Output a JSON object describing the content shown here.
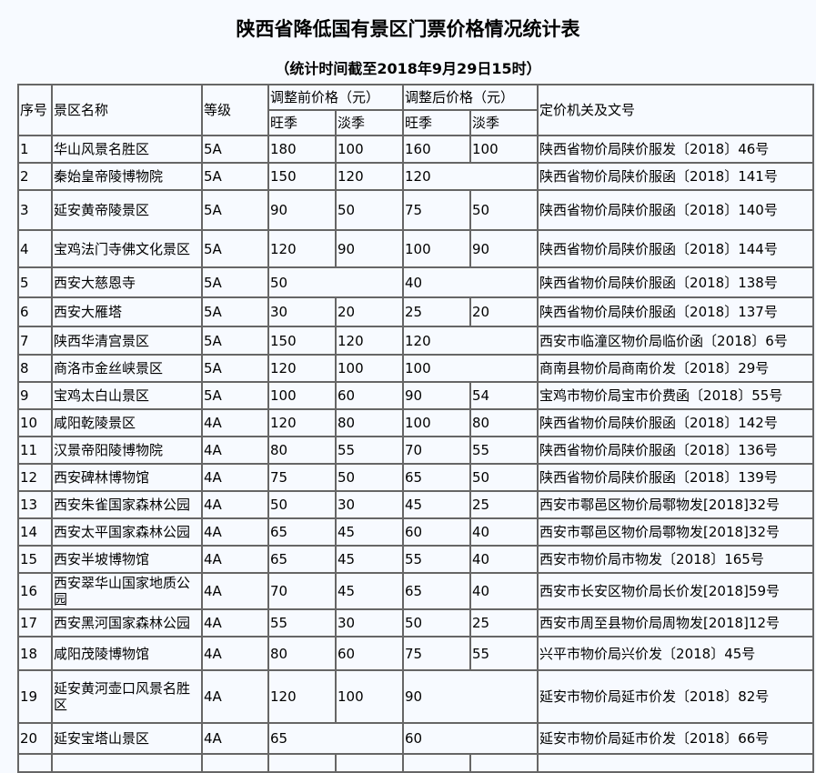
{
  "title": "陕西省降低国有景区门票价格情况统计表",
  "subtitle": "（统计时间截至2018年9月29日15时）",
  "headers": {
    "no": "序号",
    "name": "景区名称",
    "grade": "等级",
    "before": "调整前价格（元）",
    "after": "调整后价格（元）",
    "peak": "旺季",
    "off": "淡季",
    "doc": "定价机关及文号"
  },
  "rows": [
    {
      "no": "1",
      "name": "华山风景名胜区",
      "grade": "5A",
      "bp": "180",
      "bo": "100",
      "ap": "160",
      "ao": "100",
      "doc": "陕西省物价局陕价服发〔2018〕46号"
    },
    {
      "no": "2",
      "name": "秦始皇帝陵博物院",
      "grade": "5A",
      "bp": "150",
      "bo": "120",
      "ap": "120",
      "doc": "陕西省物价局陕价服函〔2018〕141号"
    },
    {
      "no": "3",
      "name": "延安黄帝陵景区",
      "grade": "5A",
      "bp": "90",
      "bo": "50",
      "ap": "75",
      "ao": "50",
      "doc": "陕西省物价局陕价服函〔2018〕140号"
    },
    {
      "no": "4",
      "name": "宝鸡法门寺佛文化景区",
      "grade": "5A",
      "bp": "120",
      "bo": "90",
      "ap": "100",
      "ao": "90",
      "doc": "陕西省物价局陕价服函〔2018〕144号"
    },
    {
      "no": "5",
      "name": "西安大慈恩寺",
      "grade": "5A",
      "bp": "50",
      "ap": "40",
      "doc": "陕西省物价局陕价服函〔2018〕138号"
    },
    {
      "no": "6",
      "name": "西安大雁塔",
      "grade": "5A",
      "bp": "30",
      "bo": "20",
      "ap": "25",
      "ao": "20",
      "doc": "陕西省物价局陕价服函〔2018〕137号"
    },
    {
      "no": "7",
      "name": "陕西华清宫景区",
      "grade": "5A",
      "bp": "150",
      "bo": "120",
      "ap": "120",
      "doc": "西安市临潼区物价局临价函〔2018〕6号"
    },
    {
      "no": "8",
      "name": "商洛市金丝峡景区",
      "grade": "5A",
      "bp": "120",
      "bo": "100",
      "ap": "100",
      "doc": "商南县物价局商南价发〔2018〕29号"
    },
    {
      "no": "9",
      "name": "宝鸡太白山景区",
      "grade": "5A",
      "bp": "100",
      "bo": "60",
      "ap": "90",
      "ao": "54",
      "doc": "宝鸡市物价局宝市价费函〔2018〕55号"
    },
    {
      "no": "10",
      "name": "咸阳乾陵景区",
      "grade": "4A",
      "bp": "120",
      "bo": "80",
      "ap": "100",
      "ao": "80",
      "doc": "陕西省物价局陕价服函〔2018〕142号"
    },
    {
      "no": "11",
      "name": "汉景帝阳陵博物院",
      "grade": "4A",
      "bp": "80",
      "bo": "55",
      "ap": "70",
      "ao": "55",
      "doc": "陕西省物价局陕价服函〔2018〕136号"
    },
    {
      "no": "12",
      "name": "西安碑林博物馆",
      "grade": "4A",
      "bp": "75",
      "bo": "50",
      "ap": "65",
      "ao": "50",
      "doc": "陕西省物价局陕价服函〔2018〕139号"
    },
    {
      "no": "13",
      "name": "西安朱雀国家森林公园",
      "grade": "4A",
      "bp": "50",
      "bo": "30",
      "ap": "45",
      "ao": "25",
      "doc": "西安市鄠邑区物价局鄠物发[2018]32号"
    },
    {
      "no": "14",
      "name": "西安太平国家森林公园",
      "grade": "4A",
      "bp": "65",
      "bo": "45",
      "ap": "60",
      "ao": "40",
      "doc": "西安市鄠邑区物价局鄠物发[2018]32号"
    },
    {
      "no": "15",
      "name": "西安半坡博物馆",
      "grade": "4A",
      "bp": "65",
      "bo": "45",
      "ap": "55",
      "ao": "40",
      "doc": "西安市物价局市物发〔2018〕165号"
    },
    {
      "no": "16",
      "name": "西安翠华山国家地质公园",
      "grade": "4A",
      "bp": "70",
      "bo": "45",
      "ap": "65",
      "ao": "40",
      "doc": "西安市长安区物价局长价发[2018]59号"
    },
    {
      "no": "17",
      "name": "西安黑河国家森林公园",
      "grade": "4A",
      "bp": "55",
      "bo": "30",
      "ap": "50",
      "ao": "25",
      "doc": "西安市周至县物价局周物发[2018]12号"
    },
    {
      "no": "18",
      "name": "咸阳茂陵博物馆",
      "grade": "4A",
      "bp": "80",
      "bo": "60",
      "ap": "75",
      "ao": "55",
      "doc": "兴平市物价局兴价发〔2018〕45号"
    },
    {
      "no": "19",
      "name": "延安黄河壶口风景名胜区",
      "grade": "4A",
      "bp": "120",
      "bo": "100",
      "ap": "90",
      "doc": "延安市物价局延市价发〔2018〕82号"
    },
    {
      "no": "20",
      "name": "延安宝塔山景区",
      "grade": "4A",
      "bp": "65",
      "ap": "60",
      "doc": "延安市物价局延市价发〔2018〕66号"
    }
  ]
}
